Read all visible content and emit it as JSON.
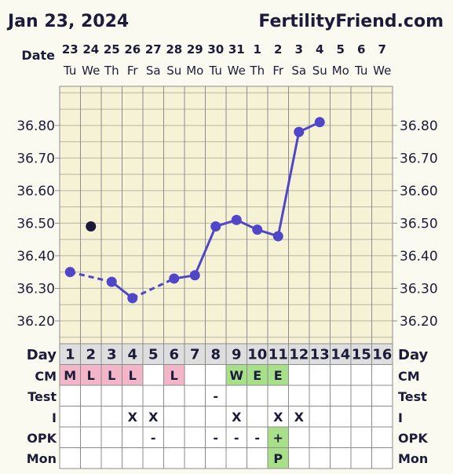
{
  "header": {
    "date": "Jan 23, 2024",
    "site": "FertilityFriend.com"
  },
  "labels": {
    "date": "Date",
    "day_left": "Day",
    "day_right": "Day",
    "cm_left": "CM",
    "cm_right": "CM",
    "test_left": "Test",
    "test_right": "Test",
    "i_left": "I",
    "i_right": "I",
    "opk_left": "OPK",
    "opk_right": "OPK",
    "mon_left": "Mon",
    "mon_right": "Mon"
  },
  "colors": {
    "background": "#fbfaf0",
    "grid": "#8c8c8c",
    "line": "#4f46c8",
    "open_point": "#1a1a3a",
    "cm_pink": "#f2b6c8",
    "cm_green": "#a8e08a",
    "opk_green": "#a8e08a",
    "day_row": "#dedede"
  },
  "chart_data": {
    "type": "line",
    "dates": [
      "23",
      "24",
      "25",
      "26",
      "27",
      "28",
      "29",
      "30",
      "31",
      "1",
      "2",
      "3",
      "4",
      "5",
      "6",
      "7"
    ],
    "weekdays": [
      "Tu",
      "We",
      "Th",
      "Fr",
      "Sa",
      "Su",
      "Mo",
      "Tu",
      "We",
      "Th",
      "Fr",
      "Sa",
      "Su",
      "Mo",
      "Tu",
      "We"
    ],
    "cycle_days": [
      "1",
      "2",
      "3",
      "4",
      "5",
      "6",
      "7",
      "8",
      "9",
      "10",
      "11",
      "12",
      "13",
      "14",
      "15",
      "16"
    ],
    "y_ticks": [
      "36.20",
      "36.30",
      "36.40",
      "36.50",
      "36.60",
      "36.70",
      "36.80"
    ],
    "ylim": [
      36.13,
      36.92
    ],
    "series": [
      {
        "values": [
          36.35,
          null,
          36.32,
          36.27,
          null,
          36.33,
          36.34,
          36.49,
          36.51,
          36.48,
          36.46,
          36.78,
          36.81,
          null,
          null,
          null
        ],
        "dashed_segments": [
          [
            0,
            2
          ],
          [
            3,
            5
          ]
        ]
      }
    ],
    "discarded_points": [
      {
        "day_index": 1,
        "value": 36.49
      }
    ],
    "rows": {
      "cm": [
        "M",
        "L",
        "L",
        "L",
        "",
        "L",
        "",
        "",
        "W",
        "E",
        "E",
        "",
        "",
        "",
        "",
        ""
      ],
      "cm_colors": [
        "pink",
        "pink",
        "pink",
        "pink",
        "",
        "pink",
        "",
        "",
        "green",
        "green",
        "green",
        "",
        "",
        "",
        "",
        ""
      ],
      "test": [
        "",
        "",
        "",
        "",
        "",
        "",
        "",
        "-",
        "",
        "",
        "",
        "",
        "",
        "",
        "",
        ""
      ],
      "intercourse": [
        "",
        "",
        "",
        "X",
        "X",
        "",
        "",
        "",
        "X",
        "",
        "X",
        "X",
        "",
        "",
        "",
        ""
      ],
      "opk": [
        "",
        "",
        "",
        "",
        "-",
        "",
        "",
        "-",
        "-",
        "-",
        "+",
        "",
        "",
        "",
        "",
        ""
      ],
      "opk_colors": [
        "",
        "",
        "",
        "",
        "",
        "",
        "",
        "",
        "",
        "",
        "green",
        "",
        "",
        "",
        "",
        ""
      ],
      "mon": [
        "",
        "",
        "",
        "",
        "",
        "",
        "",
        "",
        "",
        "",
        "P",
        "",
        "",
        "",
        "",
        ""
      ],
      "mon_colors": [
        "",
        "",
        "",
        "",
        "",
        "",
        "",
        "",
        "",
        "",
        "green",
        "",
        "",
        "",
        "",
        ""
      ]
    }
  }
}
